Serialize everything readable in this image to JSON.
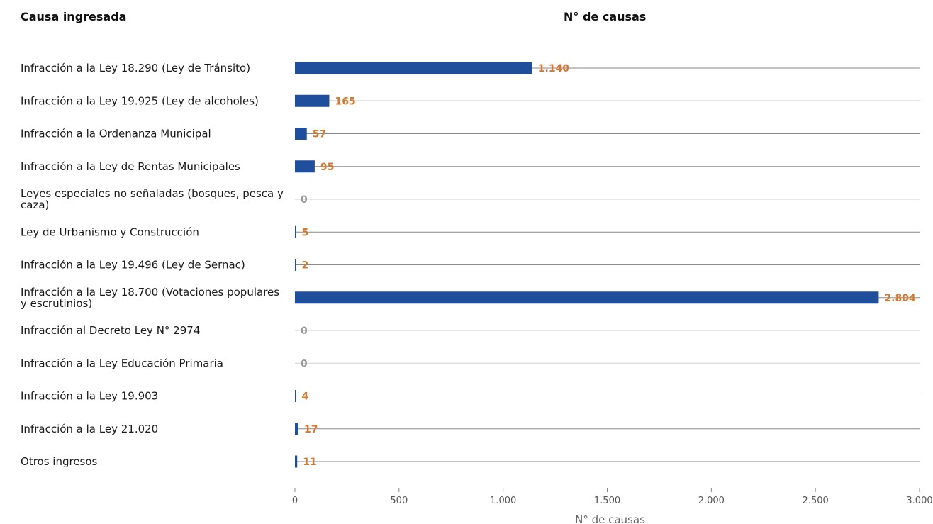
{
  "header": {
    "left_title": "Causa ingresada",
    "right_title": "N° de causas"
  },
  "colors": {
    "bar": "#1f4e9c",
    "value_label": "#d9782d",
    "value_label_zero": "#999999",
    "gridline": "#d0d0d0"
  },
  "chart_data": {
    "type": "bar",
    "orientation": "horizontal",
    "categories": [
      "Infracción a la Ley 18.290 (Ley de Tránsito)",
      "Infracción a la Ley 19.925 (Ley de alcoholes)",
      "Infracción a la Ordenanza Municipal",
      "Infracción a la Ley de Rentas Municipales",
      "Leyes especiales no señaladas (bosques, pesca y caza)",
      "Ley de Urbanismo y Construcción",
      "Infracción a la Ley 19.496 (Ley de Sernac)",
      "Infracción a la Ley 18.700 (Votaciones populares y escrutinios)",
      "Infracción al Decreto Ley N° 2974",
      "Infracción a la Ley Educación Primaria",
      "Infracción a la Ley 19.903",
      "Infracción a la Ley 21.020",
      "Otros ingresos"
    ],
    "values": [
      1140,
      165,
      57,
      95,
      0,
      5,
      2,
      2804,
      0,
      0,
      4,
      17,
      11
    ],
    "value_labels": [
      "1.140",
      "165",
      "57",
      "95",
      "0",
      "5",
      "2",
      "2.804",
      "0",
      "0",
      "4",
      "17",
      "11"
    ],
    "xlabel": "N° de causas",
    "xlim": [
      0,
      3000
    ],
    "xticks": [
      0,
      500,
      1000,
      1500,
      2000,
      2500,
      3000
    ],
    "xtick_labels": [
      "0",
      "500",
      "1.000",
      "1.500",
      "2.000",
      "2.500",
      "3.000"
    ],
    "grid": true
  }
}
